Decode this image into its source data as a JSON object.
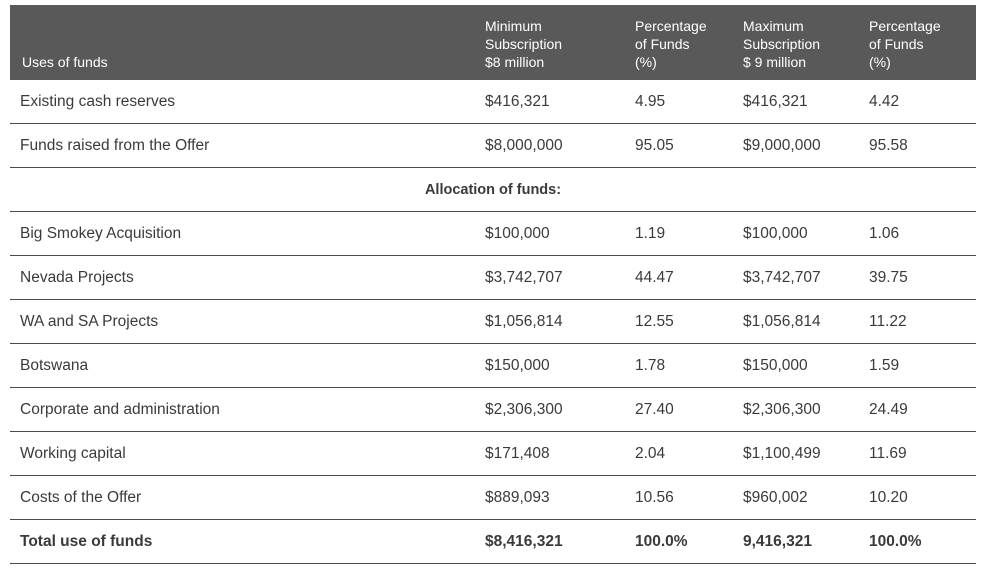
{
  "header": {
    "uses": "Uses of funds",
    "min_sub": [
      "Minimum",
      "Subscription",
      "$8 million"
    ],
    "pct1": [
      "Percentage",
      "of Funds",
      "(%)"
    ],
    "max_sub": [
      "Maximum",
      "Subscription",
      "$ 9 million"
    ],
    "pct2": [
      "Percentage",
      "of Funds",
      "(%)"
    ]
  },
  "sources": [
    {
      "label": "Existing cash reserves",
      "min": "$416,321",
      "pct_min": "4.95",
      "max": "$416,321",
      "pct_max": "4.42"
    },
    {
      "label": "Funds raised from the Offer",
      "min": "$8,000,000",
      "pct_min": "95.05",
      "max": "$9,000,000",
      "pct_max": "95.58"
    }
  ],
  "allocation_heading": "Allocation of funds:",
  "allocations": [
    {
      "label": "Big Smokey Acquisition",
      "min": "$100,000",
      "pct_min": "1.19",
      "max": "$100,000",
      "pct_max": "1.06"
    },
    {
      "label": "Nevada Projects",
      "min": "$3,742,707",
      "pct_min": "44.47",
      "max": "$3,742,707",
      "pct_max": "39.75"
    },
    {
      "label": "WA and SA Projects",
      "min": "$1,056,814",
      "pct_min": "12.55",
      "max": "$1,056,814",
      "pct_max": "11.22"
    },
    {
      "label": "Botswana",
      "min": "$150,000",
      "pct_min": "1.78",
      "max": "$150,000",
      "pct_max": "1.59"
    },
    {
      "label": "Corporate and administration",
      "min": "$2,306,300",
      "pct_min": "27.40",
      "max": "$2,306,300",
      "pct_max": "24.49"
    },
    {
      "label": "Working capital",
      "min": "$171,408",
      "pct_min": "2.04",
      "max": "$1,100,499",
      "pct_max": "11.69"
    },
    {
      "label": "Costs of the Offer",
      "min": "$889,093",
      "pct_min": "10.56",
      "max": "$960,002",
      "pct_max": "10.20"
    }
  ],
  "total": {
    "label": "Total use of funds",
    "min": "$8,416,321",
    "pct_min": "100.0%",
    "max": "9,416,321",
    "pct_max": "100.0%"
  }
}
